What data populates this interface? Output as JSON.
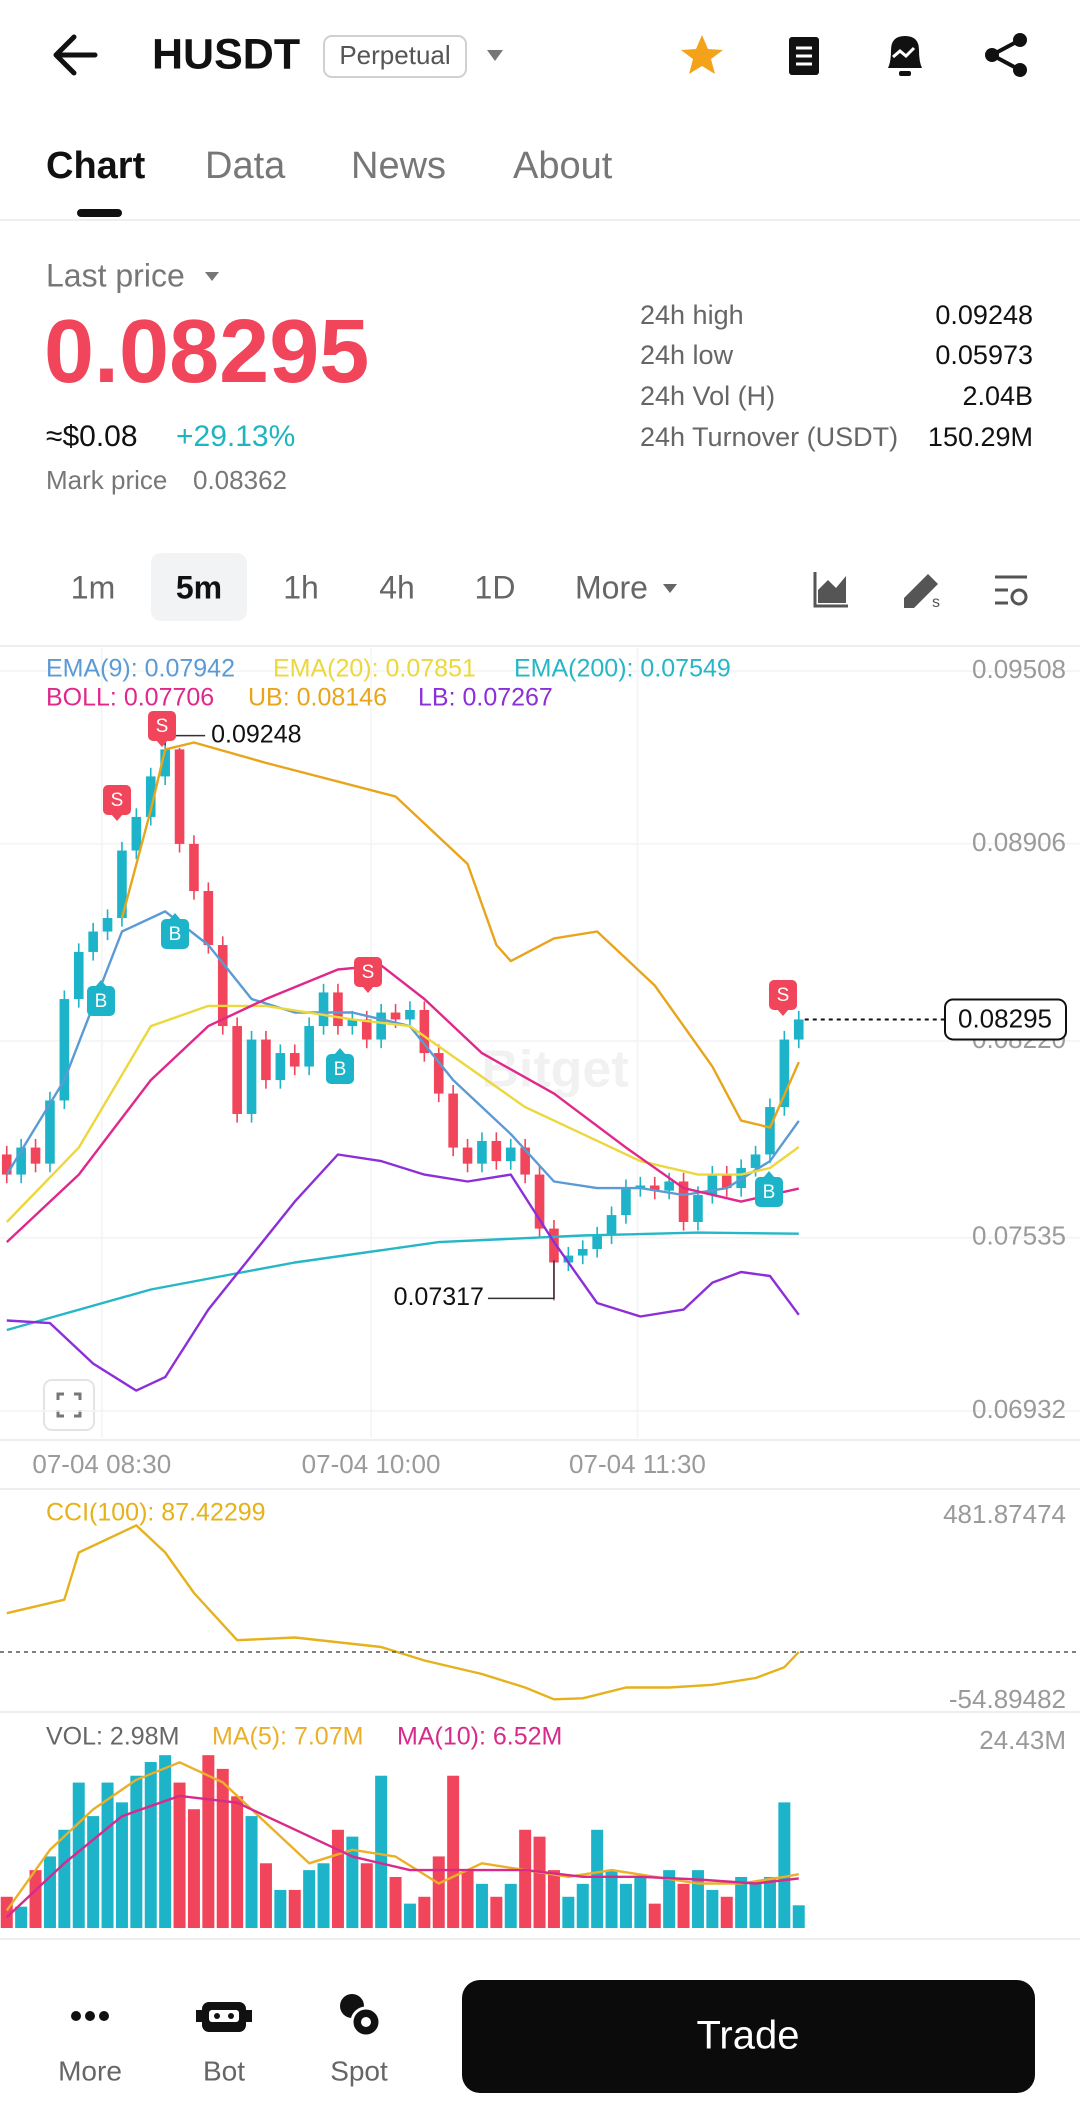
{
  "header": {
    "title": "HUSDT",
    "badge": "Perpetual"
  },
  "tabs": [
    "Chart",
    "Data",
    "News",
    "About"
  ],
  "price": {
    "label": "Last price",
    "last": "0.08295",
    "usd": "≈$0.08",
    "change": "+29.13%",
    "mark_label": "Mark price",
    "mark": "0.08362"
  },
  "stats": [
    {
      "label": "24h high",
      "value": "0.09248"
    },
    {
      "label": "24h low",
      "value": "0.05973"
    },
    {
      "label": "24h Vol (H)",
      "value": "2.04B"
    },
    {
      "label": "24h Turnover (USDT)",
      "value": "150.29M"
    }
  ],
  "intervals": [
    "1m",
    "5m",
    "1h",
    "4h",
    "1D",
    "More"
  ],
  "chart_data": [
    {
      "type": "candlestick",
      "watermark": "Bitget",
      "up_color": "#1db3c8",
      "down_color": "#f0455a",
      "grid": true,
      "ylim": [
        0.06838,
        0.09588
      ],
      "yticks": [
        0.09508,
        0.08906,
        {
          "value": 0.0822,
          "label": "0.08220"
        },
        0.07535,
        0.06932
      ],
      "xtick_labels": [
        "07-04 08:30",
        "07-04 10:00",
        "07-04 11:30"
      ],
      "signals": [
        "S",
        "S",
        "B",
        "B",
        "S",
        "B",
        "S",
        "B"
      ],
      "open": [
        0.07825,
        0.07755,
        0.07849,
        0.07793,
        0.08013,
        0.08366,
        0.0853,
        0.08601,
        0.08648,
        0.08883,
        0.09,
        0.09141,
        0.09235,
        0.08906,
        0.08742,
        0.08554,
        0.08272,
        0.07966,
        0.08225,
        0.08084,
        0.08178,
        0.08131,
        0.08272,
        0.08389,
        0.08272,
        0.08295,
        0.08225,
        0.08319,
        0.08295,
        0.08328,
        0.08178,
        0.08037,
        0.07849,
        0.07793,
        0.07872,
        0.07802,
        0.07849,
        0.07755,
        0.07567,
        0.07449,
        0.07473,
        0.07496,
        0.07543,
        0.07614,
        0.07708,
        0.07717,
        0.07699,
        0.07731,
        0.0759,
        0.07684,
        0.07755,
        0.07708,
        0.07778,
        0.07825,
        0.0799,
        0.08225
      ],
      "high": [
        0.07855,
        0.07879,
        0.07879,
        0.08043,
        0.08396,
        0.0856,
        0.08631,
        0.08678,
        0.08913,
        0.0903,
        0.09171,
        0.09248,
        0.0924,
        0.08936,
        0.08772,
        0.08584,
        0.08302,
        0.08255,
        0.08255,
        0.08208,
        0.08208,
        0.08302,
        0.08419,
        0.08419,
        0.08325,
        0.08325,
        0.08349,
        0.08349,
        0.08358,
        0.08358,
        0.08208,
        0.08067,
        0.07879,
        0.07902,
        0.07902,
        0.07879,
        0.07879,
        0.07785,
        0.07597,
        0.07503,
        0.07526,
        0.07573,
        0.07644,
        0.07738,
        0.07747,
        0.07747,
        0.07761,
        0.07761,
        0.07714,
        0.07785,
        0.07785,
        0.07808,
        0.07855,
        0.0802,
        0.08255,
        0.08325
      ],
      "low": [
        0.07725,
        0.07725,
        0.07763,
        0.07763,
        0.07983,
        0.08336,
        0.085,
        0.08571,
        0.08618,
        0.08853,
        0.0897,
        0.09111,
        0.08876,
        0.08712,
        0.08524,
        0.08242,
        0.07936,
        0.07936,
        0.08054,
        0.08054,
        0.08101,
        0.08101,
        0.08242,
        0.08242,
        0.08242,
        0.08195,
        0.08195,
        0.08265,
        0.08265,
        0.08148,
        0.08007,
        0.07819,
        0.07763,
        0.07763,
        0.07772,
        0.07772,
        0.07725,
        0.07537,
        0.07317,
        0.07419,
        0.07443,
        0.07466,
        0.07513,
        0.07584,
        0.07678,
        0.07669,
        0.07669,
        0.0756,
        0.0756,
        0.07654,
        0.07678,
        0.07678,
        0.07748,
        0.07795,
        0.0796,
        0.08195
      ],
      "close": [
        0.07755,
        0.07849,
        0.07793,
        0.08013,
        0.08366,
        0.0853,
        0.08601,
        0.08648,
        0.08883,
        0.09,
        0.09141,
        0.09235,
        0.08906,
        0.08742,
        0.08554,
        0.08272,
        0.07966,
        0.08225,
        0.08084,
        0.08178,
        0.08131,
        0.08272,
        0.08389,
        0.08272,
        0.08295,
        0.08225,
        0.08319,
        0.08295,
        0.08328,
        0.08178,
        0.08037,
        0.07849,
        0.07793,
        0.07872,
        0.07802,
        0.07849,
        0.07755,
        0.07567,
        0.07449,
        0.07473,
        0.07496,
        0.07543,
        0.07614,
        0.07708,
        0.07717,
        0.07699,
        0.07731,
        0.0759,
        0.07684,
        0.07755,
        0.07708,
        0.07778,
        0.07825,
        0.0799,
        0.08225,
        0.08295
      ],
      "lines": [
        {
          "name": "EMA(9): 0.07942",
          "color": "#5b9bd5",
          "x": [
            0,
            4,
            8,
            11,
            14,
            17,
            20,
            24,
            28,
            31,
            35,
            38,
            41,
            44,
            47,
            50,
            53,
            55
          ],
          "values": [
            0.07755,
            0.08084,
            0.08601,
            0.08671,
            0.08554,
            0.08366,
            0.08319,
            0.08319,
            0.08272,
            0.08084,
            0.07896,
            0.07731,
            0.07708,
            0.07708,
            0.07684,
            0.07708,
            0.07802,
            0.07942
          ]
        },
        {
          "name": "EMA(20): 0.07851",
          "color": "#ecd83c",
          "x": [
            0,
            5,
            10,
            14,
            18,
            24,
            28,
            32,
            36,
            40,
            44,
            48,
            51,
            53,
            55
          ],
          "values": [
            0.0759,
            0.07849,
            0.08272,
            0.08342,
            0.08342,
            0.08295,
            0.08272,
            0.08131,
            0.0799,
            0.07896,
            0.07802,
            0.07755,
            0.07755,
            0.07778,
            0.07851
          ]
        },
        {
          "name": "EMA(200): 0.07549",
          "color": "#26b7c7",
          "x": [
            0,
            10,
            20,
            30,
            40,
            48,
            55
          ],
          "values": [
            0.07214,
            0.07355,
            0.07449,
            0.0752,
            0.07543,
            0.07553,
            0.07549
          ]
        },
        {
          "name": "BOLL: 0.07706",
          "color": "#e0288c",
          "x": [
            0,
            5,
            10,
            14,
            18,
            23,
            26,
            29,
            33,
            38,
            43,
            47,
            51,
            53,
            55
          ],
          "values": [
            0.0752,
            0.07755,
            0.08084,
            0.08272,
            0.08366,
            0.08469,
            0.08483,
            0.08366,
            0.08178,
            0.08037,
            0.07849,
            0.07708,
            0.07661,
            0.07684,
            0.07706
          ]
        },
        {
          "name": "UB: 0.08146",
          "color": "#e8a51c",
          "x": [
            8,
            10,
            11,
            13,
            18,
            27,
            32,
            34,
            35,
            38,
            41,
            45,
            49,
            51,
            53,
            55
          ],
          "values": [
            0.08648,
            0.09024,
            0.09235,
            0.09259,
            0.09188,
            0.09071,
            0.08836,
            0.08554,
            0.08498,
            0.08577,
            0.08601,
            0.08413,
            0.08131,
            0.07943,
            0.07919,
            0.08146
          ]
        },
        {
          "name": "LB: 0.07267",
          "color": "#8c2fd8",
          "x": [
            0,
            3,
            6,
            9,
            11,
            14,
            17,
            20,
            23,
            26,
            29,
            32,
            35,
            38,
            41,
            44,
            47,
            49,
            51,
            53,
            55
          ],
          "values": [
            0.07247,
            0.07238,
            0.07097,
            0.07003,
            0.0705,
            0.07285,
            0.07473,
            0.07661,
            0.07825,
            0.07802,
            0.07755,
            0.07731,
            0.07755,
            0.0752,
            0.07308,
            0.07261,
            0.07285,
            0.07379,
            0.07416,
            0.07402,
            0.07267
          ]
        }
      ]
    },
    {
      "type": "line",
      "ylim": [
        -54.89482,
        481.87474
      ],
      "yticks": [
        481.87474,
        -54.89482
      ],
      "series": [
        {
          "name": "CCI(100): 87.42299",
          "color": "#e5b21b",
          "x": [
            0,
            4,
            5,
            8,
            9,
            11,
            13,
            16,
            20,
            26,
            29,
            33,
            36,
            38,
            40,
            43,
            46,
            49,
            52,
            54,
            55
          ],
          "values": [
            199.8,
            239.0,
            376.1,
            434.9,
            454.5,
            376.1,
            258.6,
            121.4,
            129.3,
            101.9,
            62.7,
            23.5,
            -15.7,
            -50.0,
            -47.0,
            -15.7,
            -15.7,
            -7.9,
            11.7,
            43.1,
            87.42299
          ]
        }
      ]
    },
    {
      "type": "bar",
      "title": "VOL: 2.98M",
      "ylim": [
        0,
        24.43
      ],
      "yticks": [
        {
          "value": 24.43,
          "label": "24.43M"
        }
      ],
      "values": [
        4.1,
        2.8,
        7.6,
        9.4,
        12.9,
        19.1,
        14.7,
        19.1,
        16.5,
        20.0,
        21.8,
        22.7,
        19.1,
        15.6,
        22.7,
        20.9,
        17.3,
        14.7,
        8.5,
        5.0,
        5.0,
        7.6,
        8.5,
        12.9,
        12.0,
        8.5,
        20.0,
        6.7,
        3.2,
        4.1,
        9.4,
        20.0,
        7.6,
        5.8,
        4.1,
        5.8,
        12.9,
        12.0,
        7.6,
        4.1,
        5.8,
        12.9,
        7.6,
        5.8,
        6.7,
        3.2,
        7.6,
        5.8,
        7.6,
        5.0,
        4.1,
        6.7,
        5.8,
        6.7,
        16.5,
        2.98
      ],
      "lines": [
        {
          "name": "MA(5): 7.07M",
          "color": "#eab02a",
          "x": [
            0,
            3,
            6,
            9,
            12,
            15,
            18,
            21,
            24,
            27,
            30,
            33,
            36,
            39,
            42,
            45,
            48,
            51,
            54,
            55
          ],
          "values": [
            2.3,
            10.27,
            15.58,
            19.47,
            21.77,
            19.12,
            13.81,
            8.5,
            10.27,
            9.38,
            5.84,
            8.5,
            7.61,
            6.73,
            7.61,
            6.73,
            5.84,
            5.84,
            6.73,
            7.07
          ]
        },
        {
          "name": "MA(10): 6.52M",
          "color": "#d82a8a",
          "x": [
            0,
            4,
            8,
            12,
            16,
            20,
            24,
            28,
            32,
            36,
            40,
            44,
            48,
            52,
            55
          ],
          "values": [
            1.42,
            8.5,
            14.69,
            17.35,
            16.46,
            12.92,
            9.38,
            7.61,
            7.61,
            7.61,
            6.73,
            6.73,
            6.37,
            5.84,
            6.52
          ]
        }
      ]
    }
  ],
  "nav": [
    "More",
    "Bot",
    "Spot"
  ],
  "trade": "Trade"
}
